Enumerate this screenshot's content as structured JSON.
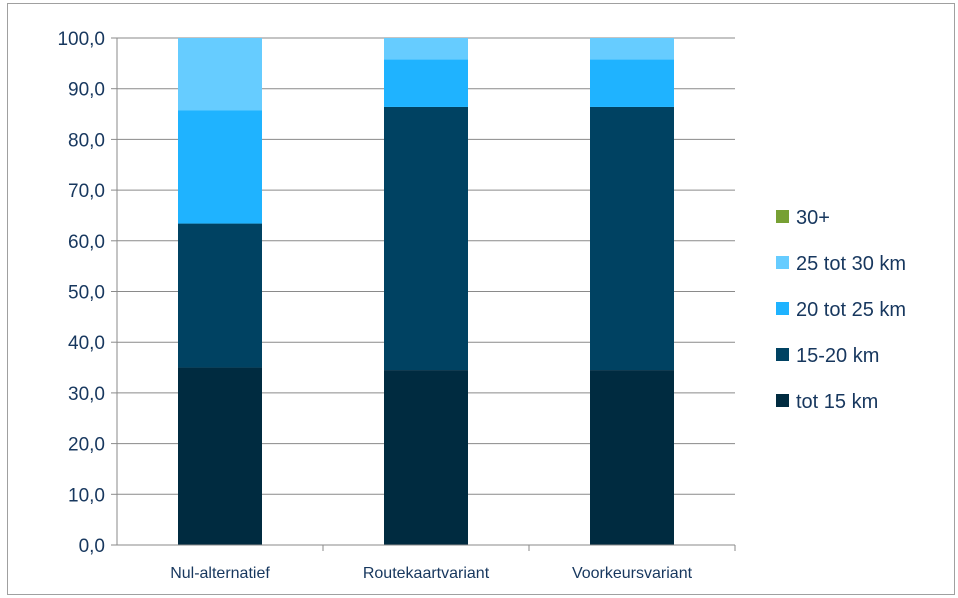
{
  "chart_data": {
    "type": "stacked-bar",
    "title": "",
    "xlabel": "",
    "ylabel": "",
    "ylim": [
      0,
      100
    ],
    "ytick_step": 10,
    "ytick_labels": [
      "0,0",
      "10,0",
      "20,0",
      "30,0",
      "40,0",
      "50,0",
      "60,0",
      "70,0",
      "80,0",
      "90,0",
      "100,0"
    ],
    "grid": true,
    "legend_position": "right",
    "categories": [
      "Nul-alternatief",
      "Routekaartvariant",
      "Voorkeursvariant"
    ],
    "series": [
      {
        "name": "tot 15 km",
        "color": "#002b40",
        "values": [
          35.0,
          34.5,
          34.5
        ]
      },
      {
        "name": "15-20 km",
        "color": "#004262",
        "values": [
          28.4,
          51.9,
          51.9
        ]
      },
      {
        "name": "20 tot 25 km",
        "color": "#1fb3ff",
        "values": [
          22.3,
          9.4,
          9.4
        ]
      },
      {
        "name": "25 tot 30 km",
        "color": "#66ccff",
        "values": [
          14.3,
          4.2,
          4.2
        ]
      },
      {
        "name": "30+",
        "color": "#77a034",
        "values": [
          0.0,
          0.0,
          0.0
        ]
      }
    ],
    "legend_order": [
      "30+",
      "25 tot 30 km",
      "20 tot 25 km",
      "15-20 km",
      "tot 15 km"
    ]
  }
}
